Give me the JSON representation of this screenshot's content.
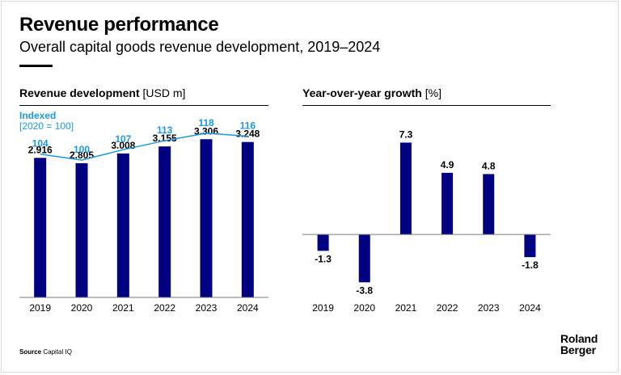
{
  "header": {
    "title": "Revenue performance",
    "subtitle": "Overall capital goods revenue development, 2019–2024"
  },
  "footer": {
    "source_label": "Source",
    "source_text": "Capital IQ",
    "logo_line1": "Roland",
    "logo_line2": "Berger"
  },
  "colors": {
    "bar": "#000080",
    "line": "#1a9ae6",
    "text": "#000000",
    "axis": "#7a7a7a"
  },
  "chart_data": [
    {
      "type": "bar",
      "title": "Revenue development",
      "unit": "[USD m]",
      "categories": [
        "2019",
        "2020",
        "2021",
        "2022",
        "2023",
        "2024"
      ],
      "values": [
        2.916,
        2.805,
        3.008,
        3.155,
        3.306,
        3.248
      ],
      "value_labels": [
        "2.916",
        "2.805",
        "3.008",
        "3.155",
        "3.306",
        "3.248"
      ],
      "ylim": [
        0,
        3.8
      ],
      "overlay": {
        "type": "line",
        "label": "Indexed",
        "sublabel": "[2020 = 100]",
        "values": [
          104,
          100,
          107,
          113,
          118,
          116
        ],
        "value_labels": [
          "104",
          "100",
          "107",
          "113",
          "118",
          "116"
        ],
        "ylim": [
          72,
          126
        ]
      }
    },
    {
      "type": "bar",
      "title": "Year-over-year growth",
      "unit": "[%]",
      "categories": [
        "2019",
        "2020",
        "2021",
        "2022",
        "2023",
        "2024"
      ],
      "values": [
        -1.3,
        -3.8,
        7.3,
        4.9,
        4.8,
        -1.8
      ],
      "value_labels": [
        "-1.3",
        "-3.8",
        "7.3",
        "4.9",
        "4.8",
        "-1.8"
      ],
      "ylim": [
        -5,
        9
      ]
    }
  ]
}
